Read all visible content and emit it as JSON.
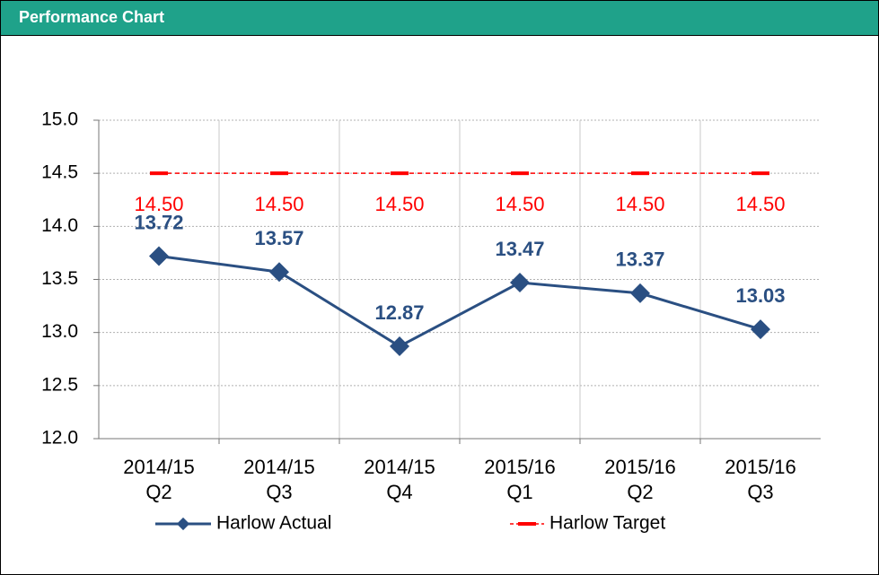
{
  "chart_data": {
    "type": "line",
    "title": "Performance Chart",
    "categories": [
      "2014/15\nQ2",
      "2014/15\nQ3",
      "2014/15\nQ4",
      "2015/16\nQ1",
      "2015/16\nQ2",
      "2015/16\nQ3"
    ],
    "series": [
      {
        "name": "Harlow Actual",
        "color": "#2a4f82",
        "marker": "diamond",
        "values": [
          13.72,
          13.57,
          12.87,
          13.47,
          13.37,
          13.03
        ]
      },
      {
        "name": "Harlow Target",
        "color": "#ff0000",
        "marker": "dash",
        "dashed": true,
        "values": [
          14.5,
          14.5,
          14.5,
          14.5,
          14.5,
          14.5
        ],
        "value_labels": [
          "14.50",
          "14.50",
          "14.50",
          "14.50",
          "14.50",
          "14.50"
        ]
      }
    ],
    "ylim": [
      12,
      15
    ],
    "yticks": [
      {
        "value": 12,
        "label": "12.0"
      },
      {
        "value": 12.5,
        "label": "12.5"
      },
      {
        "value": 13,
        "label": "13.0"
      },
      {
        "value": 13.5,
        "label": "13.5"
      },
      {
        "value": 14,
        "label": "14.0"
      },
      {
        "value": 14.5,
        "label": "14.5"
      },
      {
        "value": 15,
        "label": "15.0"
      }
    ],
    "grid": true,
    "legend": "bottom"
  }
}
